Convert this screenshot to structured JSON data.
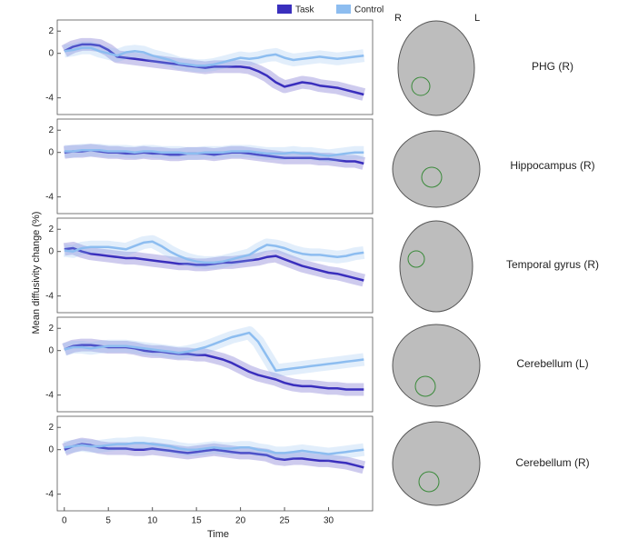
{
  "figure": {
    "y_label": "Mean diffusivity change (%)",
    "x_label": "Time",
    "hemisphere_labels": [
      "R",
      "L"
    ]
  },
  "chart_data": [
    {
      "type": "line",
      "label": "PHG (R)",
      "x": [
        0,
        1,
        2,
        3,
        4,
        5,
        6,
        7,
        8,
        9,
        10,
        11,
        12,
        13,
        14,
        15,
        16,
        17,
        18,
        19,
        20,
        21,
        22,
        23,
        24,
        25,
        26,
        27,
        28,
        29,
        30,
        31,
        32,
        33,
        34
      ],
      "series": [
        {
          "name": "Task",
          "color": "#3a2fbd",
          "values": [
            0.2,
            0.6,
            0.8,
            0.8,
            0.7,
            0.3,
            -0.3,
            -0.4,
            -0.5,
            -0.6,
            -0.7,
            -0.8,
            -0.9,
            -1.0,
            -1.1,
            -1.2,
            -1.3,
            -1.2,
            -1.2,
            -1.2,
            -1.2,
            -1.3,
            -1.6,
            -2.0,
            -2.6,
            -3.0,
            -2.8,
            -2.6,
            -2.7,
            -2.9,
            -3.0,
            -3.1,
            -3.3,
            -3.5,
            -3.7
          ]
        },
        {
          "name": "Control",
          "color": "#8dbdf0",
          "values": [
            0.2,
            0.3,
            0.5,
            0.5,
            0.2,
            0.0,
            -0.2,
            0.1,
            0.2,
            0.1,
            -0.2,
            -0.4,
            -0.6,
            -0.9,
            -1.0,
            -1.1,
            -1.1,
            -1.0,
            -0.8,
            -0.6,
            -0.4,
            -0.5,
            -0.4,
            -0.2,
            -0.1,
            -0.4,
            -0.6,
            -0.5,
            -0.4,
            -0.3,
            -0.4,
            -0.5,
            -0.4,
            -0.3,
            -0.2
          ]
        }
      ],
      "xlim": [
        -0.8,
        35
      ],
      "ylim": [
        -5.5,
        3
      ],
      "yticks": [
        -4,
        0,
        2
      ]
    },
    {
      "type": "line",
      "label": "Hippocampus (R)",
      "x": [
        0,
        1,
        2,
        3,
        4,
        5,
        6,
        7,
        8,
        9,
        10,
        11,
        12,
        13,
        14,
        15,
        16,
        17,
        18,
        19,
        20,
        21,
        22,
        23,
        24,
        25,
        26,
        27,
        28,
        29,
        30,
        31,
        32,
        33,
        34
      ],
      "series": [
        {
          "name": "Task",
          "color": "#3a2fbd",
          "values": [
            0.0,
            0.1,
            0.1,
            0.2,
            0.1,
            0.0,
            0.0,
            -0.1,
            -0.1,
            0.0,
            -0.1,
            -0.1,
            -0.2,
            -0.2,
            -0.1,
            -0.1,
            -0.1,
            -0.2,
            -0.1,
            0.0,
            0.0,
            -0.1,
            -0.2,
            -0.3,
            -0.4,
            -0.5,
            -0.5,
            -0.5,
            -0.5,
            -0.6,
            -0.6,
            -0.7,
            -0.8,
            -0.8,
            -1.0
          ]
        },
        {
          "name": "Control",
          "color": "#8dbdf0",
          "values": [
            0.1,
            0.1,
            0.2,
            0.2,
            0.2,
            0.1,
            0.1,
            0.1,
            0.0,
            0.1,
            0.1,
            0.0,
            0.0,
            0.0,
            -0.1,
            -0.1,
            0.0,
            0.0,
            0.0,
            0.1,
            0.1,
            0.1,
            0.0,
            -0.1,
            -0.1,
            -0.1,
            0.0,
            -0.1,
            -0.1,
            -0.2,
            -0.3,
            -0.2,
            -0.1,
            0.0,
            0.0
          ]
        }
      ],
      "xlim": [
        -0.8,
        35
      ],
      "ylim": [
        -5.5,
        3
      ],
      "yticks": [
        -4,
        0,
        2
      ]
    },
    {
      "type": "line",
      "label": "Temporal gyrus (R)",
      "x": [
        0,
        1,
        2,
        3,
        4,
        5,
        6,
        7,
        8,
        9,
        10,
        11,
        12,
        13,
        14,
        15,
        16,
        17,
        18,
        19,
        20,
        21,
        22,
        23,
        24,
        25,
        26,
        27,
        28,
        29,
        30,
        31,
        32,
        33,
        34
      ],
      "series": [
        {
          "name": "Task",
          "color": "#3a2fbd",
          "values": [
            0.2,
            0.3,
            0.0,
            -0.2,
            -0.3,
            -0.4,
            -0.5,
            -0.6,
            -0.6,
            -0.7,
            -0.8,
            -0.9,
            -1.0,
            -1.1,
            -1.1,
            -1.2,
            -1.2,
            -1.1,
            -1.0,
            -1.0,
            -0.9,
            -0.8,
            -0.7,
            -0.5,
            -0.4,
            -0.7,
            -1.0,
            -1.3,
            -1.5,
            -1.7,
            -1.9,
            -2.0,
            -2.2,
            -2.4,
            -2.6
          ]
        },
        {
          "name": "Control",
          "color": "#8dbdf0",
          "values": [
            0.1,
            0.0,
            0.3,
            0.4,
            0.4,
            0.4,
            0.3,
            0.2,
            0.5,
            0.8,
            0.9,
            0.5,
            0.0,
            -0.4,
            -0.7,
            -0.9,
            -1.0,
            -1.0,
            -0.9,
            -0.7,
            -0.5,
            -0.3,
            0.2,
            0.6,
            0.5,
            0.3,
            0.0,
            -0.2,
            -0.3,
            -0.3,
            -0.4,
            -0.5,
            -0.4,
            -0.2,
            -0.1
          ]
        }
      ],
      "xlim": [
        -0.8,
        35
      ],
      "ylim": [
        -5.5,
        3
      ],
      "yticks": [
        -4,
        0,
        2
      ]
    },
    {
      "type": "line",
      "label": "Cerebellum (L)",
      "x": [
        0,
        1,
        2,
        3,
        4,
        5,
        6,
        7,
        8,
        9,
        10,
        11,
        12,
        13,
        14,
        15,
        16,
        17,
        18,
        19,
        20,
        21,
        22,
        23,
        24,
        25,
        26,
        27,
        28,
        29,
        30,
        31,
        32,
        33,
        34
      ],
      "series": [
        {
          "name": "Task",
          "color": "#3a2fbd",
          "values": [
            0.1,
            0.4,
            0.5,
            0.5,
            0.4,
            0.3,
            0.3,
            0.3,
            0.2,
            0.0,
            -0.1,
            -0.1,
            -0.2,
            -0.3,
            -0.3,
            -0.4,
            -0.4,
            -0.6,
            -0.8,
            -1.1,
            -1.5,
            -1.9,
            -2.2,
            -2.4,
            -2.6,
            -2.9,
            -3.1,
            -3.2,
            -3.2,
            -3.3,
            -3.4,
            -3.4,
            -3.5,
            -3.5,
            -3.5
          ]
        },
        {
          "name": "Control",
          "color": "#8dbdf0",
          "values": [
            0.1,
            0.3,
            0.3,
            0.2,
            0.3,
            0.4,
            0.4,
            0.4,
            0.3,
            0.2,
            0.1,
            0.0,
            -0.1,
            -0.2,
            -0.1,
            0.1,
            0.3,
            0.6,
            0.9,
            1.2,
            1.4,
            1.6,
            0.8,
            -0.5,
            -1.8,
            -1.7,
            -1.6,
            -1.5,
            -1.4,
            -1.3,
            -1.2,
            -1.1,
            -1.0,
            -0.9,
            -0.8
          ]
        }
      ],
      "xlim": [
        -0.8,
        35
      ],
      "ylim": [
        -5.5,
        3
      ],
      "yticks": [
        -4,
        0,
        2
      ]
    },
    {
      "type": "line",
      "label": "Cerebellum (R)",
      "x": [
        0,
        1,
        2,
        3,
        4,
        5,
        6,
        7,
        8,
        9,
        10,
        11,
        12,
        13,
        14,
        15,
        16,
        17,
        18,
        19,
        20,
        21,
        22,
        23,
        24,
        25,
        26,
        27,
        28,
        29,
        30,
        31,
        32,
        33,
        34
      ],
      "series": [
        {
          "name": "Task",
          "color": "#3a2fbd",
          "values": [
            0.0,
            0.3,
            0.5,
            0.4,
            0.2,
            0.1,
            0.1,
            0.1,
            0.0,
            0.0,
            0.1,
            0.0,
            -0.1,
            -0.2,
            -0.3,
            -0.2,
            -0.1,
            0.0,
            -0.1,
            -0.2,
            -0.3,
            -0.3,
            -0.4,
            -0.5,
            -0.8,
            -0.9,
            -0.8,
            -0.8,
            -0.9,
            -1.0,
            -1.0,
            -1.1,
            -1.2,
            -1.4,
            -1.6
          ]
        },
        {
          "name": "Control",
          "color": "#8dbdf0",
          "values": [
            0.2,
            0.3,
            0.4,
            0.3,
            0.3,
            0.4,
            0.5,
            0.5,
            0.6,
            0.6,
            0.5,
            0.4,
            0.3,
            0.1,
            0.0,
            0.0,
            0.1,
            0.2,
            0.1,
            0.1,
            0.2,
            0.2,
            0.0,
            -0.1,
            -0.3,
            -0.3,
            -0.2,
            -0.1,
            -0.2,
            -0.3,
            -0.4,
            -0.3,
            -0.2,
            -0.1,
            0.0
          ]
        }
      ],
      "xlim": [
        -0.8,
        35
      ],
      "ylim": [
        -5.5,
        3
      ],
      "yticks": [
        -4,
        0,
        2
      ],
      "xticks": [
        0,
        5,
        10,
        15,
        20,
        25,
        30
      ]
    }
  ]
}
